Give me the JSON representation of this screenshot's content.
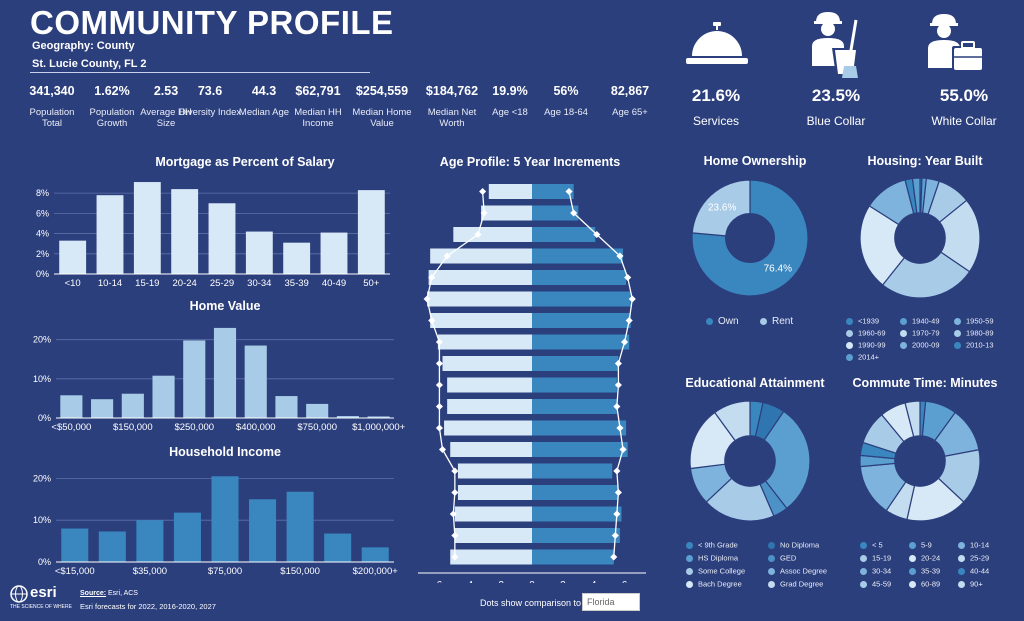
{
  "header": {
    "title": "COMMUNITY PROFILE",
    "geography": "Geography: County",
    "location": "St. Lucie County, FL 2"
  },
  "stats": [
    {
      "value": "341,340",
      "label": "Population Total"
    },
    {
      "value": "1.62%",
      "label": "Population Growth"
    },
    {
      "value": "2.53",
      "label": "Average HH Size"
    },
    {
      "value": "73.6",
      "label": "Diversity Index"
    },
    {
      "value": "44.3",
      "label": "Median Age"
    },
    {
      "value": "$62,791",
      "label": "Median HH Income"
    },
    {
      "value": "$254,559",
      "label": "Median Home Value"
    },
    {
      "value": "$184,762",
      "label": "Median Net Worth"
    },
    {
      "value": "19.9%",
      "label": "Age <18"
    },
    {
      "value": "56%",
      "label": "Age 18-64"
    },
    {
      "value": "82,867",
      "label": "Age 65+"
    }
  ],
  "occupations": [
    {
      "value": "21.6%",
      "label": "Services",
      "icon": "service-bell-icon"
    },
    {
      "value": "23.5%",
      "label": "Blue Collar",
      "icon": "worker-with-bucket-icon"
    },
    {
      "value": "55.0%",
      "label": "White Collar",
      "icon": "worker-with-briefcase-icon"
    }
  ],
  "footer": {
    "source": "Source:",
    "source_text": " Esri, ACS",
    "forecast": "Esri forecasts for 2022, 2016-2020, 2027",
    "logo_text": "esri",
    "logo_tagline": "THE SCIENCE OF WHERE",
    "dots_label": "Dots show comparison to",
    "comparison_value": "Florida"
  },
  "colors": {
    "background": "#2c3f7d",
    "bar_light": "#d7e8f7",
    "bar_mid": "#a8cbe8",
    "bar_dark": "#3a87c0",
    "pyramid_right": "#3a87c0"
  },
  "chart_data": [
    {
      "id": "mortgage",
      "type": "bar",
      "title": "Mortgage as Percent of Salary",
      "categories": [
        "<10",
        "10-14",
        "15-19",
        "20-24",
        "25-29",
        "30-34",
        "35-39",
        "40-49",
        "50+"
      ],
      "values": [
        3.3,
        7.8,
        9.1,
        8.4,
        7.0,
        4.2,
        3.1,
        4.1,
        8.3
      ],
      "y_ticks": [
        "0%",
        "2%",
        "4%",
        "6%",
        "8%"
      ],
      "ylim": [
        0,
        9.5
      ],
      "grid": true
    },
    {
      "id": "home_value",
      "type": "bar",
      "title": "Home Value",
      "categories": [
        "<$50,000",
        "",
        "$150,000",
        "",
        "$250,000",
        "",
        "$400,000",
        "",
        "$750,000",
        "",
        "$1,000,000+"
      ],
      "values": [
        5.8,
        4.8,
        6.2,
        10.8,
        19.8,
        23.0,
        18.5,
        5.6,
        3.6,
        0.5,
        0.4
      ],
      "y_ticks": [
        "0%",
        "10%",
        "20%"
      ],
      "ylim": [
        0,
        24
      ],
      "grid": true
    },
    {
      "id": "household_income",
      "type": "bar",
      "title": "Household Income",
      "categories": [
        "<$15,000",
        "",
        "$35,000",
        "",
        "$75,000",
        "",
        "$150,000",
        "",
        "$200,000+"
      ],
      "values": [
        8.0,
        7.3,
        10.0,
        11.8,
        20.5,
        15.0,
        16.8,
        6.8,
        3.5
      ],
      "y_ticks": [
        "0%",
        "10%",
        "20%"
      ],
      "ylim": [
        0,
        22
      ],
      "grid": true
    },
    {
      "id": "age_profile",
      "type": "bar",
      "title": "Age Profile: 5 Year Increments",
      "orientation": "horizontal",
      "x_ticks": [
        "6",
        "4",
        "2",
        "0",
        "2",
        "4",
        "6"
      ],
      "xlim": [
        -7,
        7
      ],
      "left_values": [
        2.8,
        3.3,
        5.1,
        6.6,
        6.7,
        6.8,
        6.6,
        6.1,
        5.8,
        5.5,
        5.5,
        5.7,
        5.3,
        4.8,
        4.8,
        5.0,
        5.0,
        5.3
      ],
      "right_values": [
        2.7,
        3.0,
        4.1,
        5.9,
        6.1,
        6.4,
        6.4,
        6.3,
        5.6,
        5.5,
        5.5,
        6.1,
        6.2,
        5.2,
        5.6,
        5.8,
        5.7,
        5.3
      ],
      "left_comparison": [
        3.2,
        3.1,
        3.5,
        5.5,
        6.5,
        6.8,
        6.5,
        6.0,
        6.0,
        6.0,
        6.0,
        6.0,
        5.8,
        5.0,
        5.0,
        5.1,
        5.0,
        5.0
      ],
      "right_comparison": [
        2.4,
        2.7,
        4.2,
        5.7,
        6.2,
        6.5,
        6.3,
        6.0,
        5.6,
        5.6,
        5.5,
        5.7,
        5.9,
        5.5,
        5.6,
        5.5,
        5.4,
        5.3
      ]
    },
    {
      "id": "home_ownership",
      "type": "pie",
      "title": "Home Ownership",
      "labels": [
        "Own",
        "Rent"
      ],
      "values": [
        76.4,
        23.6
      ],
      "value_labels": [
        "76.4%",
        "23.6%"
      ],
      "colors": [
        "#3a87c0",
        "#a8cbe8"
      ],
      "legend": "bottom"
    },
    {
      "id": "housing_year_built",
      "type": "pie",
      "title": "Housing: Year Built",
      "labels": [
        "<1939",
        "1940-49",
        "1950-59",
        "1960-69",
        "1970-79",
        "1980-89",
        "1990-99",
        "2000-09",
        "2010-13",
        "2014+"
      ],
      "values": [
        0.5,
        1.2,
        3.5,
        9.0,
        20.3,
        26.2,
        23.3,
        12.0,
        2.0,
        2.0
      ],
      "colors": [
        "#3a87c0",
        "#5b9fd0",
        "#7db3dc",
        "#a8cbe8",
        "#c3dcf0",
        "#a8cbe8",
        "#d7e8f7",
        "#7db3dc",
        "#3a87c0",
        "#5b9fd0"
      ],
      "legend": "bottom"
    },
    {
      "id": "educational_attainment",
      "type": "pie",
      "title": "Educational Attainment",
      "labels": [
        "< 9th Grade",
        "No Diploma",
        "HS Diploma",
        "GED",
        "Some College",
        "Assoc Degree",
        "Bach Degree",
        "Grad Degree"
      ],
      "values": [
        3.5,
        6.0,
        30.0,
        4.0,
        19.5,
        10.0,
        17.0,
        10.0
      ],
      "colors": [
        "#3a87c0",
        "#2f76b0",
        "#5b9fd0",
        "#4d92c7",
        "#a8cbe8",
        "#7db3dc",
        "#d7e8f7",
        "#c3dcf0"
      ],
      "legend": "bottom"
    },
    {
      "id": "commute_time",
      "type": "pie",
      "title": "Commute Time: Minutes",
      "labels": [
        "< 5",
        "5-9",
        "10-14",
        "15-19",
        "20-24",
        "25-29",
        "30-34",
        "35-39",
        "40-44",
        "45-59",
        "60-89",
        "90+"
      ],
      "values": [
        1.5,
        8.5,
        12.0,
        15.0,
        16.5,
        6.0,
        14.0,
        3.0,
        3.5,
        9.0,
        7.0,
        4.0
      ],
      "colors": [
        "#3a87c0",
        "#5b9fd0",
        "#7db3dc",
        "#a8cbe8",
        "#d7e8f7",
        "#c3dcf0",
        "#7db3dc",
        "#5b9fd0",
        "#3a87c0",
        "#a8cbe8",
        "#d7e8f7",
        "#c3dcf0"
      ],
      "legend": "bottom"
    }
  ]
}
